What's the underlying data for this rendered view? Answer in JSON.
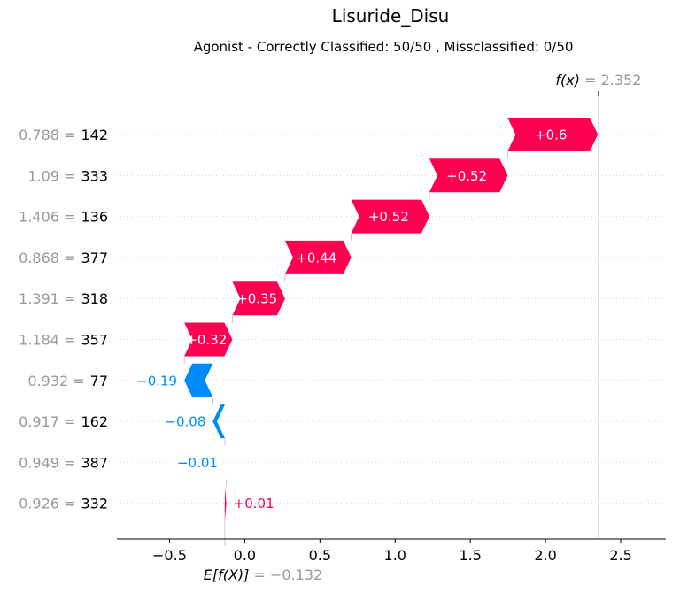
{
  "chart_data": {
    "type": "bar",
    "title": "Lisuride_Disu",
    "subtitle": "Agonist - Correctly Classified: 50/50 , Missclassified: 0/50",
    "base_value": -0.132,
    "base_label": "E[f(X)]",
    "base_text": "= −0.132",
    "final_value": 2.352,
    "final_label": "f(x)",
    "final_text": "= 2.352",
    "xlim": [
      -0.85,
      2.8
    ],
    "xticks": [
      -0.5,
      0.0,
      0.5,
      1.0,
      1.5,
      2.0,
      2.5
    ],
    "xtick_labels": [
      "−0.5",
      "0.0",
      "0.5",
      "1.0",
      "1.5",
      "2.0",
      "2.5"
    ],
    "positive_color": "#ff0051",
    "negative_color": "#008bfb",
    "features": [
      {
        "value": "0.788 =",
        "name": "142",
        "contribution": 0.6,
        "label": "+0.6"
      },
      {
        "value": "1.09 =",
        "name": "333",
        "contribution": 0.52,
        "label": "+0.52"
      },
      {
        "value": "1.406 =",
        "name": "136",
        "contribution": 0.52,
        "label": "+0.52"
      },
      {
        "value": "0.868 =",
        "name": "377",
        "contribution": 0.44,
        "label": "+0.44"
      },
      {
        "value": "1.391 =",
        "name": "318",
        "contribution": 0.35,
        "label": "+0.35"
      },
      {
        "value": "1.184 =",
        "name": "357",
        "contribution": 0.32,
        "label": "+0.32"
      },
      {
        "value": "0.932 =",
        "name": "77",
        "contribution": -0.19,
        "label": "−0.19"
      },
      {
        "value": "0.917 =",
        "name": "162",
        "contribution": -0.08,
        "label": "−0.08"
      },
      {
        "value": "0.949 =",
        "name": "387",
        "contribution": -0.01,
        "label": "−0.01"
      },
      {
        "value": "0.926 =",
        "name": "332",
        "contribution": 0.01,
        "label": "+0.01"
      }
    ]
  }
}
